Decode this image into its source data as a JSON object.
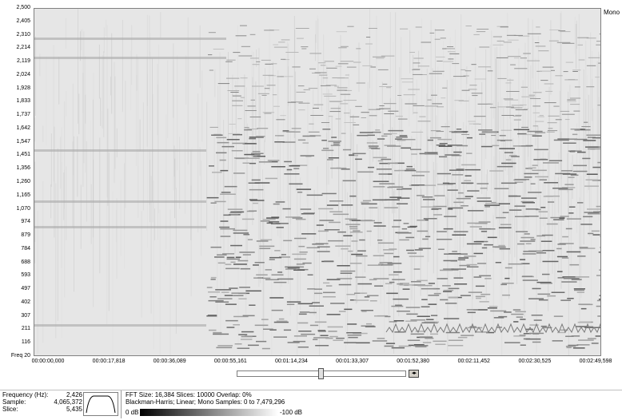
{
  "y_axis": {
    "labels": [
      "2,500",
      "2,405",
      "2,310",
      "2,214",
      "2,119",
      "2,024",
      "1,928",
      "1,833",
      "1,737",
      "1,642",
      "1,547",
      "1,451",
      "1,356",
      "1,260",
      "1,165",
      "1,070",
      "974",
      "879",
      "784",
      "688",
      "593",
      "497",
      "402",
      "307",
      "211",
      "116",
      "Freq 20"
    ]
  },
  "x_axis": {
    "labels": [
      "00:00:00,000",
      "00:00:17,818",
      "00:00:36,089",
      "00:00:55,161",
      "00:01:14,234",
      "00:01:33,307",
      "00:01:52,380",
      "00:02:11,452",
      "00:02:30,525",
      "00:02:49,598"
    ]
  },
  "channel_label": "Mono",
  "zoom_button_label": "◂▸",
  "readout": {
    "frequency_label": "Frequency (Hz):",
    "frequency_value": "2,426",
    "sample_label": "Sample:",
    "sample_value": "4,065,372",
    "slice_label": "Slice:",
    "slice_value": "5,435"
  },
  "info": {
    "line1": "FFT Size: 16,384  Slices: 10000  Overlap: 0%",
    "line2": "Blackman-Harris; Linear; Mono  Samples: 0 to 7,479,296"
  },
  "gradient": {
    "left_label": "0 dB",
    "right_label": "-100 dB"
  }
}
